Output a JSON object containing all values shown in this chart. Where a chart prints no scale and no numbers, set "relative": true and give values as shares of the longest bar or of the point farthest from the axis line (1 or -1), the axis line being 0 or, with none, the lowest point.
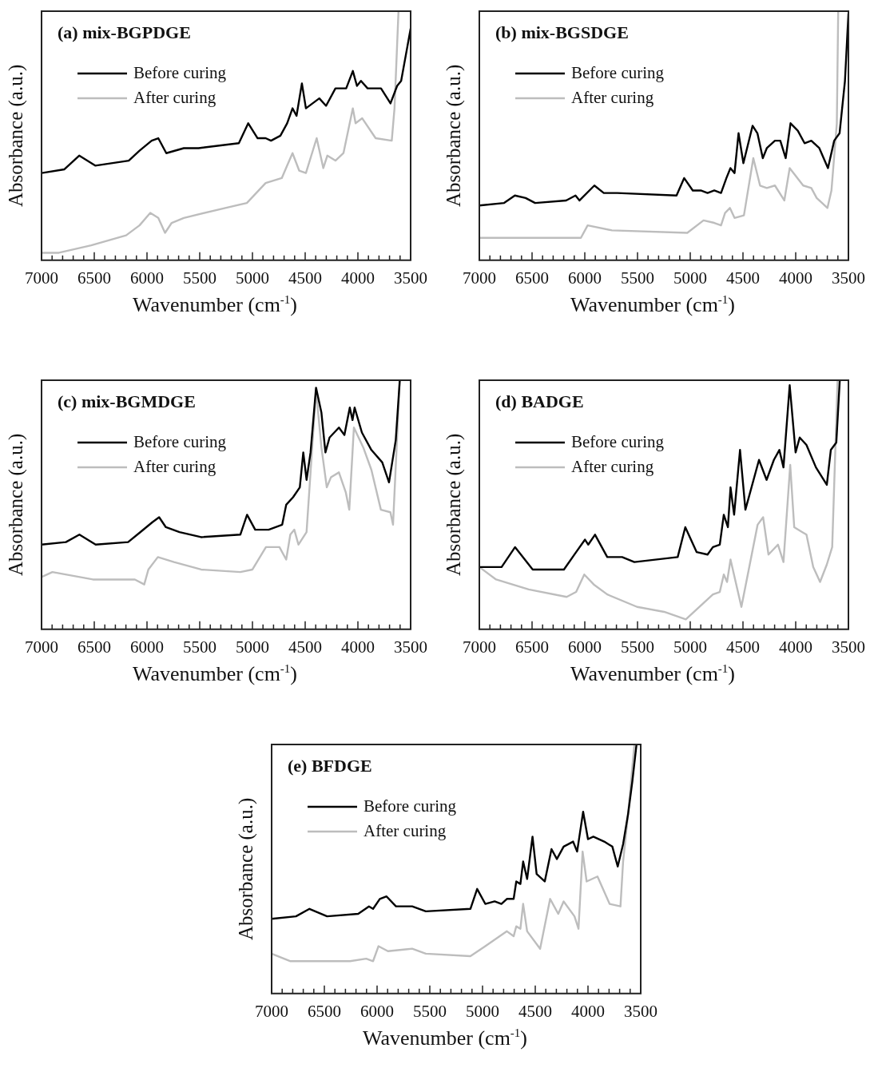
{
  "chart_data": [
    {
      "type": "line",
      "title": "(a) mix-BGPDGE",
      "xlabel": "Wavenumber (cm$^{-1}$)",
      "ylabel": "Absorbance (a.u.)",
      "relative": true,
      "legend": "top left",
      "tick_labels": "x",
      "xlim": [
        7000,
        3500
      ],
      "xticks": [
        7000,
        {
          "value": 6900,
          "label": null
        },
        {
          "value": 6800,
          "label": null
        },
        {
          "value": 6700,
          "label": null
        },
        {
          "value": 6600,
          "label": null
        },
        6500,
        {
          "value": 6400,
          "label": null
        },
        {
          "value": 6300,
          "label": null
        },
        {
          "value": 6200,
          "label": null
        },
        {
          "value": 6100,
          "label": null
        },
        6000,
        {
          "value": 5900,
          "label": null
        },
        {
          "value": 5800,
          "label": null
        },
        {
          "value": 5700,
          "label": null
        },
        {
          "value": 5600,
          "label": null
        },
        5500,
        {
          "value": 5400,
          "label": null
        },
        {
          "value": 5300,
          "label": null
        },
        {
          "value": 5200,
          "label": null
        },
        {
          "value": 5100,
          "label": null
        },
        5000,
        {
          "value": 4900,
          "label": null
        },
        {
          "value": 4800,
          "label": null
        },
        {
          "value": 4700,
          "label": null
        },
        {
          "value": 4600,
          "label": null
        },
        4500,
        {
          "value": 4400,
          "label": null
        },
        {
          "value": 4300,
          "label": null
        },
        {
          "value": 4200,
          "label": null
        },
        {
          "value": 4100,
          "label": null
        },
        4000,
        {
          "value": 3900,
          "label": null
        },
        {
          "value": 3800,
          "label": null
        },
        {
          "value": 3700,
          "label": null
        },
        {
          "value": 3600,
          "label": null
        },
        3500
      ],
      "series": [
        {
          "name": "Before curing",
          "color": "#000000",
          "x": [
            7000,
            6783,
            6643,
            6491,
            6173,
            6071,
            5956,
            5893,
            5817,
            5651,
            5511,
            5129,
            5040,
            4951,
            4875,
            4824,
            4735,
            4671,
            4620,
            4582,
            4531,
            4493,
            4366,
            4302,
            4213,
            4111,
            4048,
            4009,
            3971,
            3908,
            3781,
            3691,
            3628,
            3590,
            3500
          ],
          "values": [
            0.35,
            0.365,
            0.42,
            0.38,
            0.4,
            0.44,
            0.48,
            0.49,
            0.43,
            0.45,
            0.45,
            0.47,
            0.55,
            0.49,
            0.49,
            0.48,
            0.5,
            0.55,
            0.61,
            0.58,
            0.71,
            0.61,
            0.65,
            0.62,
            0.69,
            0.69,
            0.76,
            0.7,
            0.72,
            0.69,
            0.69,
            0.63,
            0.7,
            0.72,
            0.93
          ]
        },
        {
          "name": "After curing",
          "color": "#bdbdbd",
          "x": [
            7000,
            6835,
            6529,
            6198,
            6071,
            5969,
            5893,
            5829,
            5766,
            5651,
            5257,
            5053,
            4875,
            4722,
            4671,
            4620,
            4557,
            4493,
            4391,
            4328,
            4290,
            4213,
            4137,
            4048,
            4022,
            3959,
            3832,
            3679,
            3653,
            3615
          ],
          "values": [
            0.03,
            0.03,
            0.06,
            0.1,
            0.14,
            0.19,
            0.17,
            0.11,
            0.15,
            0.17,
            0.21,
            0.23,
            0.31,
            0.33,
            0.38,
            0.43,
            0.36,
            0.35,
            0.49,
            0.37,
            0.42,
            0.4,
            0.43,
            0.61,
            0.55,
            0.57,
            0.49,
            0.48,
            0.61,
            1.0
          ]
        }
      ]
    },
    {
      "type": "line",
      "title": "(b) mix-BGSDGE",
      "xlabel": "Wavenumber (cm$^{-1}$)",
      "ylabel": "Absorbance (a.u.)",
      "relative": true,
      "legend": "top left",
      "tick_labels": "x",
      "xlim": [
        7000,
        3500
      ],
      "xticks": [
        7000,
        {
          "value": 6900,
          "label": null
        },
        {
          "value": 6800,
          "label": null
        },
        {
          "value": 6700,
          "label": null
        },
        {
          "value": 6600,
          "label": null
        },
        6500,
        {
          "value": 6400,
          "label": null
        },
        {
          "value": 6300,
          "label": null
        },
        {
          "value": 6200,
          "label": null
        },
        {
          "value": 6100,
          "label": null
        },
        6000,
        {
          "value": 5900,
          "label": null
        },
        {
          "value": 5800,
          "label": null
        },
        {
          "value": 5700,
          "label": null
        },
        {
          "value": 5600,
          "label": null
        },
        5500,
        {
          "value": 5400,
          "label": null
        },
        {
          "value": 5300,
          "label": null
        },
        {
          "value": 5200,
          "label": null
        },
        {
          "value": 5100,
          "label": null
        },
        5000,
        {
          "value": 4900,
          "label": null
        },
        {
          "value": 4800,
          "label": null
        },
        {
          "value": 4700,
          "label": null
        },
        {
          "value": 4600,
          "label": null
        },
        4500,
        {
          "value": 4400,
          "label": null
        },
        {
          "value": 4300,
          "label": null
        },
        {
          "value": 4200,
          "label": null
        },
        {
          "value": 4100,
          "label": null
        },
        4000,
        {
          "value": 3900,
          "label": null
        },
        {
          "value": 3800,
          "label": null
        },
        {
          "value": 3700,
          "label": null
        },
        {
          "value": 3600,
          "label": null
        },
        3500
      ],
      "series": [
        {
          "name": "Before curing",
          "color": "#000000",
          "x": [
            7000,
            6765,
            6663,
            6561,
            6471,
            6177,
            6088,
            6050,
            5909,
            5820,
            5692,
            5130,
            5058,
            4976,
            4900,
            4836,
            4772,
            4708,
            4657,
            4619,
            4580,
            4542,
            4496,
            4409,
            4363,
            4312,
            4274,
            4197,
            4146,
            4095,
            4049,
            3980,
            3916,
            3852,
            3776,
            3694,
            3635,
            3584,
            3533,
            3500
          ],
          "values": [
            0.22,
            0.23,
            0.26,
            0.25,
            0.23,
            0.24,
            0.26,
            0.24,
            0.3,
            0.27,
            0.27,
            0.26,
            0.33,
            0.28,
            0.28,
            0.27,
            0.28,
            0.27,
            0.33,
            0.37,
            0.35,
            0.51,
            0.39,
            0.54,
            0.51,
            0.41,
            0.45,
            0.48,
            0.48,
            0.41,
            0.55,
            0.52,
            0.47,
            0.48,
            0.45,
            0.37,
            0.48,
            0.51,
            0.72,
            0.99
          ]
        },
        {
          "name": "After curing",
          "color": "#bdbdbd",
          "x": [
            7000,
            6561,
            6037,
            5973,
            5743,
            5028,
            4874,
            4772,
            4708,
            4670,
            4624,
            4580,
            4491,
            4402,
            4338,
            4274,
            4197,
            4108,
            4057,
            3929,
            3852,
            3801,
            3699,
            3661,
            3610,
            3597
          ],
          "values": [
            0.09,
            0.09,
            0.09,
            0.14,
            0.12,
            0.11,
            0.16,
            0.15,
            0.14,
            0.19,
            0.21,
            0.17,
            0.18,
            0.41,
            0.3,
            0.29,
            0.3,
            0.24,
            0.37,
            0.3,
            0.29,
            0.25,
            0.21,
            0.28,
            0.55,
            1.0
          ]
        }
      ]
    },
    {
      "type": "line",
      "title": "(c) mix-BGMDGE",
      "xlabel": "Wavenumber (cm$^{-1}$)",
      "ylabel": "Absorbance (a.u.)",
      "relative": true,
      "legend": "top left",
      "tick_labels": "x",
      "xlim": [
        7000,
        3500
      ],
      "xticks": [
        7000,
        {
          "value": 6900,
          "label": null
        },
        {
          "value": 6800,
          "label": null
        },
        {
          "value": 6700,
          "label": null
        },
        {
          "value": 6600,
          "label": null
        },
        6500,
        {
          "value": 6400,
          "label": null
        },
        {
          "value": 6300,
          "label": null
        },
        {
          "value": 6200,
          "label": null
        },
        {
          "value": 6100,
          "label": null
        },
        6000,
        {
          "value": 5900,
          "label": null
        },
        {
          "value": 5800,
          "label": null
        },
        {
          "value": 5700,
          "label": null
        },
        {
          "value": 5600,
          "label": null
        },
        5500,
        {
          "value": 5400,
          "label": null
        },
        {
          "value": 5300,
          "label": null
        },
        {
          "value": 5200,
          "label": null
        },
        {
          "value": 5100,
          "label": null
        },
        5000,
        {
          "value": 4900,
          "label": null
        },
        {
          "value": 4800,
          "label": null
        },
        {
          "value": 4700,
          "label": null
        },
        {
          "value": 4600,
          "label": null
        },
        4500,
        {
          "value": 4400,
          "label": null
        },
        {
          "value": 4300,
          "label": null
        },
        {
          "value": 4200,
          "label": null
        },
        {
          "value": 4100,
          "label": null
        },
        4000,
        {
          "value": 3900,
          "label": null
        },
        {
          "value": 3800,
          "label": null
        },
        {
          "value": 3700,
          "label": null
        },
        {
          "value": 3600,
          "label": null
        },
        3500
      ],
      "series": [
        {
          "name": "Before curing",
          "color": "#000000",
          "x": [
            7000,
            6769,
            6641,
            6487,
            6179,
            6064,
            5949,
            5885,
            5821,
            5692,
            5487,
            5115,
            5051,
            4974,
            4846,
            4718,
            4680,
            4615,
            4551,
            4518,
            4487,
            4449,
            4397,
            4346,
            4308,
            4269,
            4180,
            4128,
            4077,
            4051,
            4031,
            3962,
            3872,
            3769,
            3705,
            3641,
            3603
          ],
          "values": [
            0.34,
            0.35,
            0.38,
            0.34,
            0.35,
            0.39,
            0.43,
            0.45,
            0.41,
            0.39,
            0.37,
            0.38,
            0.46,
            0.4,
            0.4,
            0.42,
            0.5,
            0.53,
            0.57,
            0.71,
            0.6,
            0.71,
            0.97,
            0.87,
            0.71,
            0.77,
            0.81,
            0.78,
            0.89,
            0.84,
            0.89,
            0.79,
            0.72,
            0.67,
            0.59,
            0.76,
            1.0
          ]
        },
        {
          "name": "After curing",
          "color": "#bdbdbd",
          "x": [
            7000,
            6897,
            6513,
            6115,
            6026,
            5987,
            5897,
            5744,
            5487,
            5115,
            5000,
            4872,
            4744,
            4680,
            4641,
            4603,
            4564,
            4487,
            4397,
            4346,
            4295,
            4256,
            4180,
            4115,
            4082,
            4038,
            3949,
            3872,
            3782,
            3692,
            3667,
            3603
          ],
          "values": [
            0.21,
            0.23,
            0.2,
            0.2,
            0.18,
            0.24,
            0.29,
            0.27,
            0.24,
            0.23,
            0.24,
            0.33,
            0.33,
            0.28,
            0.38,
            0.4,
            0.34,
            0.39,
            0.96,
            0.73,
            0.57,
            0.61,
            0.63,
            0.55,
            0.48,
            0.81,
            0.73,
            0.64,
            0.48,
            0.47,
            0.42,
            1.0
          ]
        }
      ]
    },
    {
      "type": "line",
      "title": "(d) BADGE",
      "xlabel": "Wavenumber (cm$^{-1}$)",
      "ylabel": "Absorbance (a.u.)",
      "relative": true,
      "legend": "top left",
      "tick_labels": "x",
      "xlim": [
        7000,
        3500
      ],
      "xticks": [
        7000,
        {
          "value": 6900,
          "label": null
        },
        {
          "value": 6800,
          "label": null
        },
        {
          "value": 6700,
          "label": null
        },
        {
          "value": 6600,
          "label": null
        },
        6500,
        {
          "value": 6400,
          "label": null
        },
        {
          "value": 6300,
          "label": null
        },
        {
          "value": 6200,
          "label": null
        },
        {
          "value": 6100,
          "label": null
        },
        6000,
        {
          "value": 5900,
          "label": null
        },
        {
          "value": 5800,
          "label": null
        },
        {
          "value": 5700,
          "label": null
        },
        {
          "value": 5600,
          "label": null
        },
        5500,
        {
          "value": 5400,
          "label": null
        },
        {
          "value": 5300,
          "label": null
        },
        {
          "value": 5200,
          "label": null
        },
        {
          "value": 5100,
          "label": null
        },
        5000,
        {
          "value": 4900,
          "label": null
        },
        {
          "value": 4800,
          "label": null
        },
        {
          "value": 4700,
          "label": null
        },
        {
          "value": 4600,
          "label": null
        },
        4500,
        {
          "value": 4400,
          "label": null
        },
        {
          "value": 4300,
          "label": null
        },
        {
          "value": 4200,
          "label": null
        },
        {
          "value": 4100,
          "label": null
        },
        4000,
        {
          "value": 3900,
          "label": null
        },
        {
          "value": 3800,
          "label": null
        },
        {
          "value": 3700,
          "label": null
        },
        {
          "value": 3600,
          "label": null
        },
        3500
      ],
      "series": [
        {
          "name": "Before curing",
          "color": "#000000",
          "x": [
            7000,
            6789,
            6661,
            6494,
            6198,
            6082,
            5998,
            5967,
            5903,
            5787,
            5646,
            5530,
            5119,
            5047,
            4939,
            4836,
            4785,
            4720,
            4682,
            4643,
            4618,
            4584,
            4528,
            4477,
            4348,
            4276,
            4207,
            4155,
            4116,
            4057,
            4001,
            3962,
            3898,
            3808,
            3705,
            3667,
            3615,
            3582
          ],
          "values": [
            0.25,
            0.25,
            0.33,
            0.24,
            0.24,
            0.31,
            0.36,
            0.34,
            0.38,
            0.29,
            0.29,
            0.27,
            0.29,
            0.41,
            0.31,
            0.3,
            0.33,
            0.34,
            0.46,
            0.41,
            0.57,
            0.46,
            0.72,
            0.48,
            0.68,
            0.6,
            0.68,
            0.72,
            0.65,
            0.98,
            0.71,
            0.77,
            0.74,
            0.65,
            0.58,
            0.72,
            0.75,
            1.0
          ]
        },
        {
          "name": "After curing",
          "color": "#bdbdbd",
          "x": [
            7000,
            6841,
            6532,
            6172,
            6082,
            6005,
            5915,
            5787,
            5504,
            5247,
            5042,
            4785,
            4720,
            4682,
            4651,
            4618,
            4515,
            4361,
            4309,
            4258,
            4168,
            4116,
            4052,
            4014,
            3937,
            3898,
            3834,
            3769,
            3705,
            3654,
            3603
          ],
          "values": [
            0.25,
            0.2,
            0.16,
            0.13,
            0.15,
            0.22,
            0.18,
            0.14,
            0.09,
            0.07,
            0.04,
            0.14,
            0.15,
            0.22,
            0.19,
            0.28,
            0.09,
            0.42,
            0.45,
            0.3,
            0.34,
            0.27,
            0.66,
            0.41,
            0.39,
            0.38,
            0.25,
            0.19,
            0.26,
            0.33,
            1.0
          ]
        }
      ]
    },
    {
      "type": "line",
      "title": "(e) BFDGE",
      "xlabel": "Wavenumber (cm$^{-1}$)",
      "ylabel": "Absorbance (a.u.)",
      "relative": true,
      "legend": "top left",
      "tick_labels": "x",
      "xlim": [
        7000,
        3500
      ],
      "xticks": [
        7000,
        {
          "value": 6900,
          "label": null
        },
        {
          "value": 6800,
          "label": null
        },
        {
          "value": 6700,
          "label": null
        },
        {
          "value": 6600,
          "label": null
        },
        6500,
        {
          "value": 6400,
          "label": null
        },
        {
          "value": 6300,
          "label": null
        },
        {
          "value": 6200,
          "label": null
        },
        {
          "value": 6100,
          "label": null
        },
        6000,
        {
          "value": 5900,
          "label": null
        },
        {
          "value": 5800,
          "label": null
        },
        {
          "value": 5700,
          "label": null
        },
        {
          "value": 5600,
          "label": null
        },
        5500,
        {
          "value": 5400,
          "label": null
        },
        {
          "value": 5300,
          "label": null
        },
        {
          "value": 5200,
          "label": null
        },
        {
          "value": 5100,
          "label": null
        },
        5000,
        {
          "value": 4900,
          "label": null
        },
        {
          "value": 4800,
          "label": null
        },
        {
          "value": 4700,
          "label": null
        },
        {
          "value": 4600,
          "label": null
        },
        4500,
        {
          "value": 4400,
          "label": null
        },
        {
          "value": 4300,
          "label": null
        },
        {
          "value": 4200,
          "label": null
        },
        {
          "value": 4100,
          "label": null
        },
        4000,
        {
          "value": 3900,
          "label": null
        },
        {
          "value": 3800,
          "label": null
        },
        {
          "value": 3700,
          "label": null
        },
        {
          "value": 3600,
          "label": null
        },
        3500
      ],
      "series": [
        {
          "name": "Before curing",
          "color": "#000000",
          "x": [
            7000,
            6769,
            6641,
            6474,
            6179,
            6077,
            6038,
            5974,
            5910,
            5821,
            5667,
            5538,
            5115,
            5051,
            4974,
            4885,
            4821,
            4769,
            4705,
            4680,
            4641,
            4615,
            4577,
            4526,
            4487,
            4410,
            4346,
            4295,
            4231,
            4141,
            4103,
            4046,
            4000,
            3949,
            3846,
            3769,
            3718,
            3667,
            3620,
            3580,
            3540
          ],
          "values": [
            0.3,
            0.31,
            0.34,
            0.31,
            0.32,
            0.35,
            0.34,
            0.38,
            0.39,
            0.35,
            0.35,
            0.33,
            0.34,
            0.42,
            0.36,
            0.37,
            0.36,
            0.38,
            0.38,
            0.45,
            0.44,
            0.53,
            0.46,
            0.63,
            0.48,
            0.45,
            0.58,
            0.54,
            0.59,
            0.61,
            0.57,
            0.73,
            0.62,
            0.63,
            0.61,
            0.59,
            0.51,
            0.6,
            0.72,
            0.85,
            1.0
          ]
        },
        {
          "name": "After curing",
          "color": "#bdbdbd",
          "x": [
            7000,
            6821,
            6256,
            6103,
            6038,
            5987,
            5897,
            5667,
            5538,
            5115,
            4974,
            4769,
            4705,
            4680,
            4641,
            4615,
            4577,
            4454,
            4359,
            4282,
            4231,
            4128,
            4090,
            4051,
            4013,
            3910,
            3795,
            3692,
            3667,
            3620,
            3560
          ],
          "values": [
            0.16,
            0.13,
            0.13,
            0.14,
            0.13,
            0.19,
            0.17,
            0.18,
            0.16,
            0.15,
            0.19,
            0.25,
            0.23,
            0.27,
            0.26,
            0.36,
            0.25,
            0.18,
            0.38,
            0.32,
            0.37,
            0.31,
            0.26,
            0.57,
            0.45,
            0.47,
            0.36,
            0.35,
            0.53,
            0.72,
            1.0
          ]
        }
      ]
    }
  ]
}
